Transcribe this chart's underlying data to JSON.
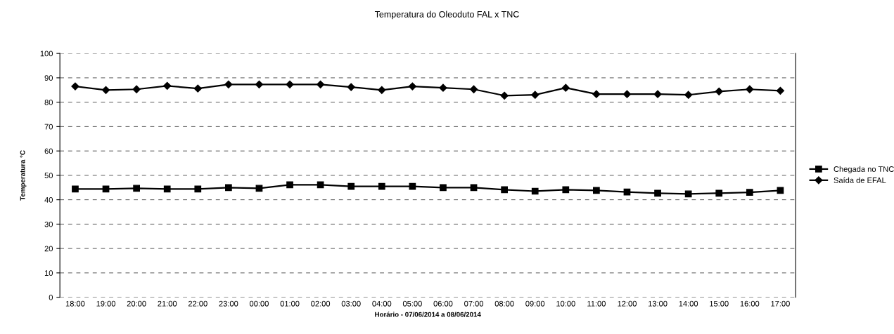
{
  "chart_data": {
    "type": "line",
    "title": "Temperatura do Oleoduto FAL x TNC",
    "xlabel": "Horário - 07/06/2014 a 08/06/2014",
    "ylabel": "Temperatura °C",
    "categories": [
      "18:00",
      "19:00",
      "20:00",
      "21:00",
      "22:00",
      "23:00",
      "00:00",
      "01:00",
      "02:00",
      "03:00",
      "04:00",
      "05:00",
      "06:00",
      "07:00",
      "08:00",
      "09:00",
      "10:00",
      "11:00",
      "12:00",
      "13:00",
      "14:00",
      "15:00",
      "16:00",
      "17:00"
    ],
    "series": [
      {
        "name": "Chegada no TNC",
        "color": "#000000",
        "marker": "square",
        "values": [
          44.4,
          44.4,
          44.7,
          44.4,
          44.4,
          45.0,
          44.7,
          46.1,
          46.1,
          45.5,
          45.5,
          45.5,
          45.0,
          45.0,
          44.1,
          43.5,
          44.1,
          43.8,
          43.2,
          42.7,
          42.4,
          42.7,
          43.0,
          43.8
        ]
      },
      {
        "name": "Saída de EFAL",
        "color": "#000000",
        "marker": "diamond",
        "values": [
          86.5,
          85.0,
          85.3,
          86.7,
          85.6,
          87.3,
          87.3,
          87.3,
          87.3,
          86.2,
          85.0,
          86.5,
          85.9,
          85.3,
          82.7,
          83.0,
          85.9,
          83.3,
          83.3,
          83.3,
          83.0,
          84.4,
          85.3,
          84.7
        ]
      }
    ],
    "ylim": [
      0,
      100
    ],
    "yticks": [
      0,
      10,
      20,
      30,
      40,
      50,
      60,
      70,
      80,
      90,
      100
    ],
    "grid": "y",
    "line_style": "solid",
    "legend": "right"
  }
}
